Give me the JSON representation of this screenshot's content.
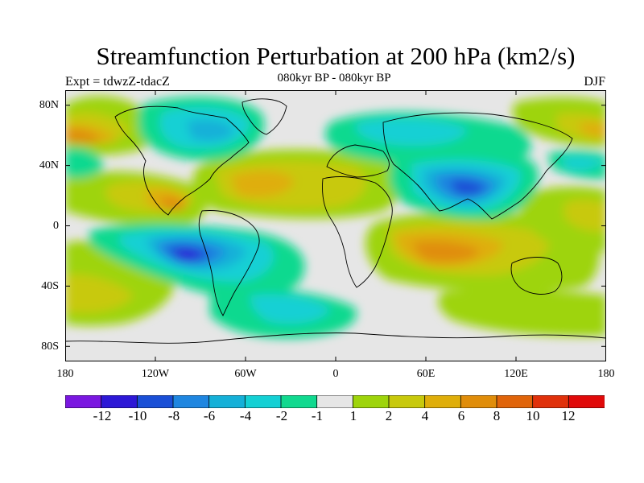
{
  "figure": {
    "title": "Streamfunction Perturbation at 200 hPa (km2/s)",
    "subtitle": "080kyr BP - 080kyr BP",
    "experiment": "Expt = tdwzZ-tdacZ",
    "season": "DJF"
  },
  "map": {
    "projection": "cylindrical equidistant",
    "lon_range": [
      -180,
      180
    ],
    "lat_range": [
      -90,
      90
    ],
    "y_tick_labels": [
      "80N",
      "40N",
      "0",
      "40S",
      "80S"
    ],
    "x_tick_labels": [
      "180",
      "120W",
      "60W",
      "0",
      "60E",
      "120E",
      "180"
    ],
    "background_color": "#e6e6e6",
    "coastline_color": "#000000"
  },
  "colorbar": {
    "tick_labels": [
      "-12",
      "-10",
      "-8",
      "-6",
      "-4",
      "-2",
      "-1",
      "1",
      "2",
      "4",
      "6",
      "8",
      "10",
      "12"
    ],
    "colors": [
      "#7a17e0",
      "#2d18d6",
      "#1a4fd6",
      "#1f86e0",
      "#15b0d8",
      "#14d0d4",
      "#11d98f",
      "#e6e6e6",
      "#9ed40b",
      "#c8c90c",
      "#dfae0a",
      "#e08d0a",
      "#e0640a",
      "#e0310b",
      "#e00a0a"
    ]
  },
  "chart_data": {
    "type": "contour-map",
    "variable": "Streamfunction Perturbation",
    "level": "200 hPa",
    "units": "km2/s",
    "season": "DJF",
    "contour_levels": [
      -12,
      -10,
      -8,
      -6,
      -4,
      -2,
      -1,
      1,
      2,
      4,
      6,
      8,
      10,
      12
    ],
    "notable_features": [
      {
        "region": "Southeast Pacific off South America",
        "sign": "negative",
        "approx_min": -12
      },
      {
        "region": "Central/South Asia",
        "sign": "negative",
        "approx_min": -10
      },
      {
        "region": "Northern Canada / Greenland",
        "sign": "negative",
        "approx_min": -6
      },
      {
        "region": "Northern Eurasia",
        "sign": "negative",
        "approx_min": -4
      },
      {
        "region": "Southern Indian Ocean",
        "sign": "positive",
        "approx_max": 8
      },
      {
        "region": "Tropical North Atlantic",
        "sign": "positive",
        "approx_max": 6
      },
      {
        "region": "North Pacific / Alaska",
        "sign": "positive",
        "approx_max": 6
      },
      {
        "region": "Eastern Pacific near Central America",
        "sign": "positive",
        "approx_max": 8
      }
    ]
  }
}
